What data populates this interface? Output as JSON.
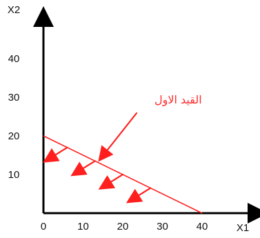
{
  "chart_data": {
    "type": "line",
    "title": "",
    "xlabel": "X1",
    "ylabel": "X2",
    "xlim": [
      0,
      45
    ],
    "ylim": [
      0,
      48
    ],
    "x_ticks": [
      "0",
      "10",
      "20",
      "30",
      "40"
    ],
    "y_ticks": [
      "10",
      "20",
      "30",
      "40"
    ],
    "series": [
      {
        "x": [
          0,
          40
        ],
        "y": [
          20,
          0
        ]
      }
    ],
    "annotation": {
      "text": "القيد الاول",
      "color": "#ff2b2b"
    },
    "feasible_region_direction": "below-left"
  }
}
